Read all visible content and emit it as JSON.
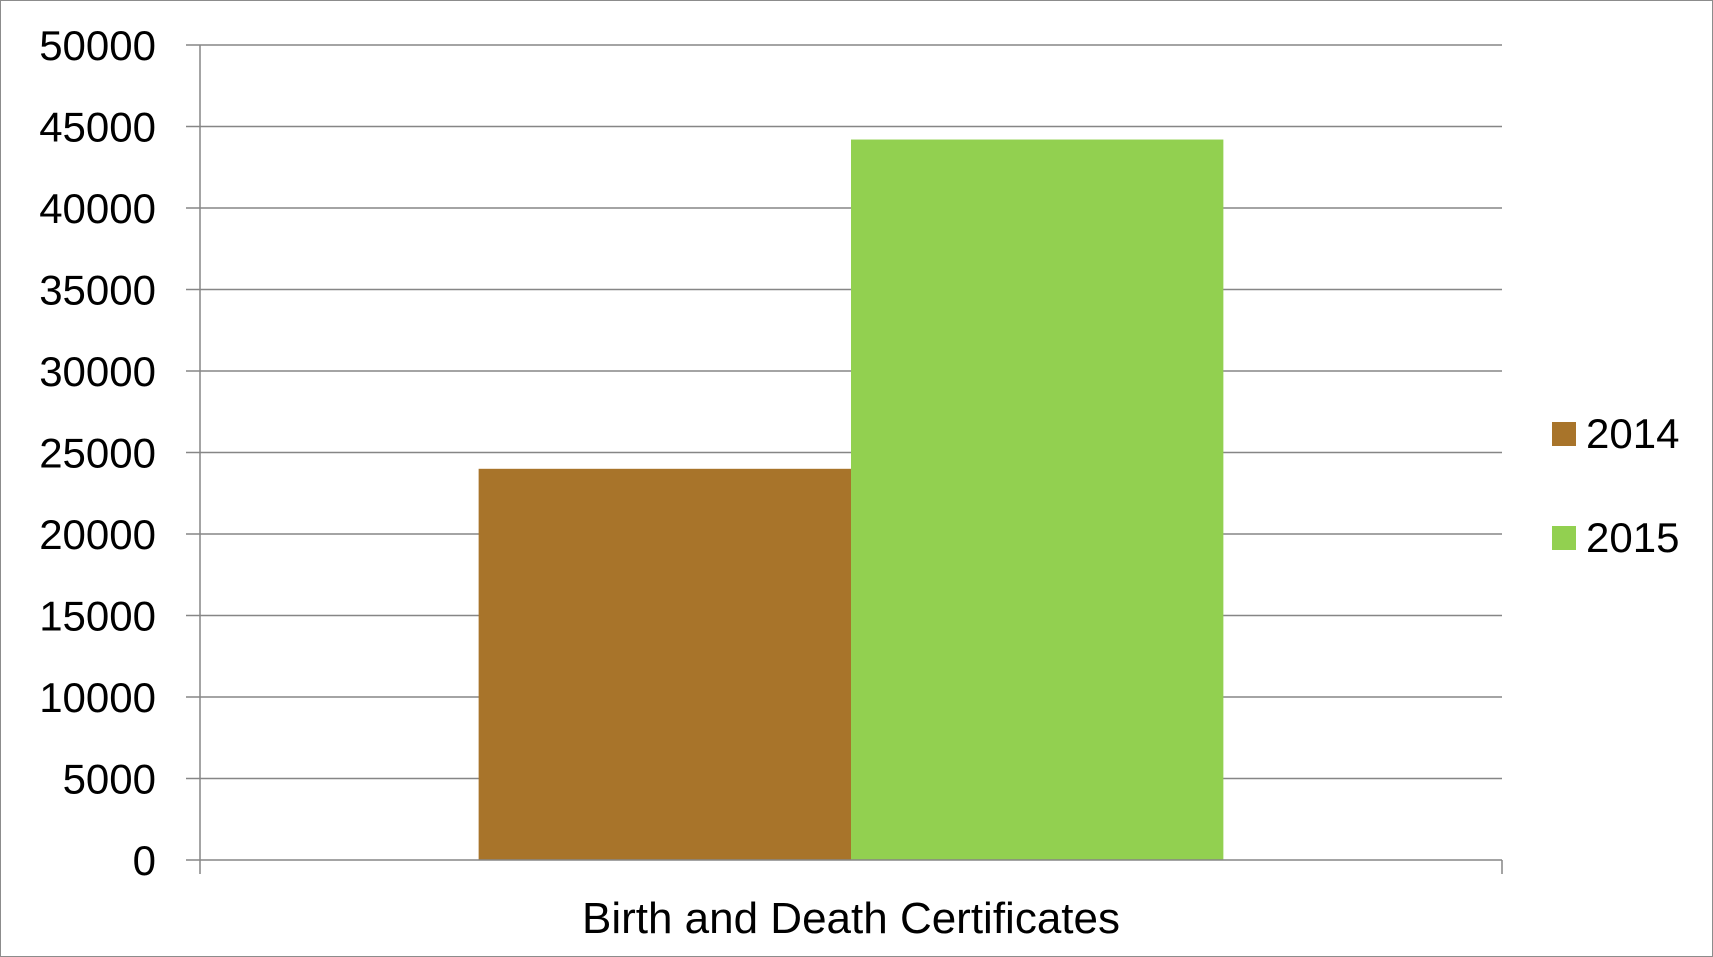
{
  "chart_data": {
    "type": "bar",
    "categories": [
      "Birth and Death Certificates"
    ],
    "series": [
      {
        "name": "2014",
        "values": [
          24000
        ],
        "color": "#A8742A"
      },
      {
        "name": "2015",
        "values": [
          44200
        ],
        "color": "#92D050"
      }
    ],
    "title": "",
    "xlabel": "",
    "ylabel": "",
    "ylim": [
      0,
      50000
    ],
    "yticks": [
      0,
      5000,
      10000,
      15000,
      20000,
      25000,
      30000,
      35000,
      40000,
      45000,
      50000
    ],
    "grid": true,
    "legend": "right"
  }
}
